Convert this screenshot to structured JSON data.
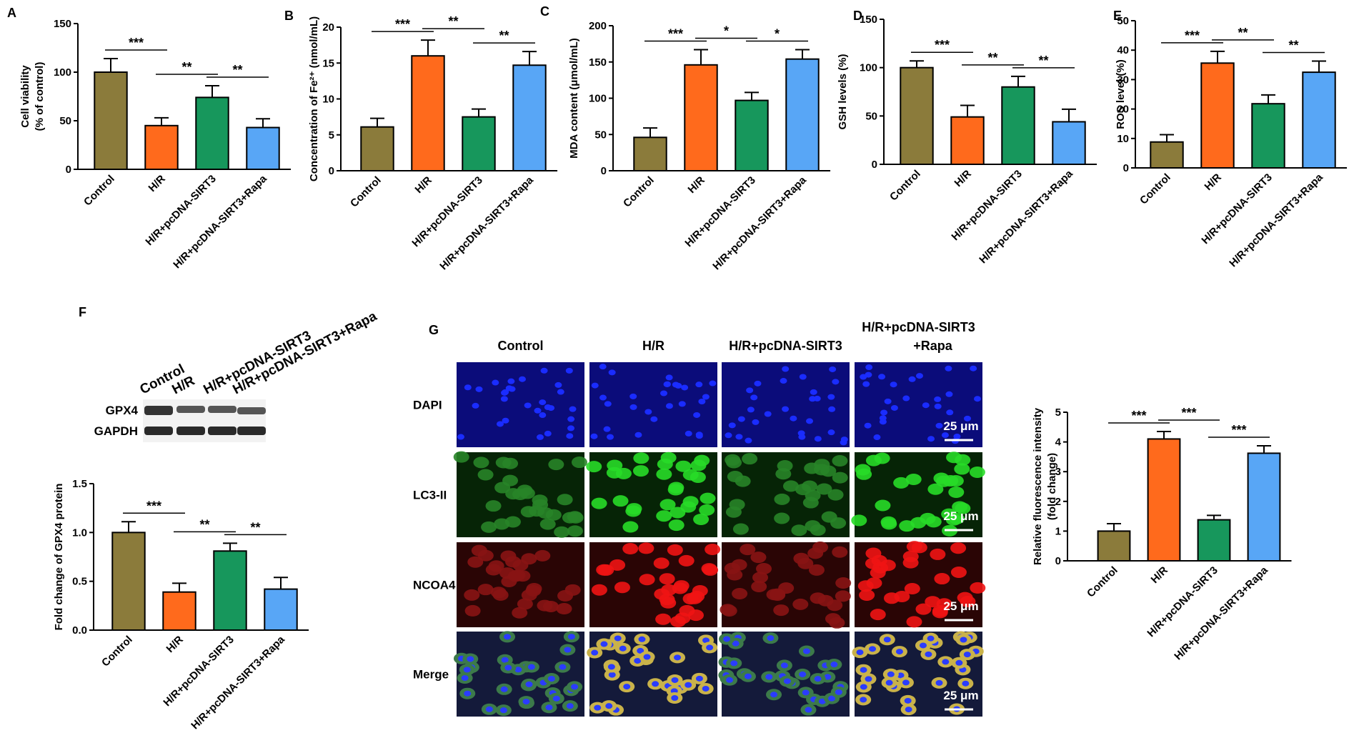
{
  "chart_data": [
    {
      "type": "bar",
      "label": "A",
      "ylabel": [
        "Cell viability",
        "(% of control)"
      ],
      "categories": [
        "Control",
        "H/R",
        "H/R+pcDNA-SIRT3",
        "H/R+pcDNA-SIRT3+Rapa"
      ],
      "values": [
        100,
        45,
        74,
        43
      ],
      "errors": [
        14,
        8,
        12,
        9
      ],
      "colors": [
        "#8b7b3b",
        "#ff6a1c",
        "#17975c",
        "#58a6f6"
      ],
      "ylim": [
        0,
        150
      ],
      "yticks": [
        0,
        50,
        100,
        150
      ],
      "significance": [
        "***",
        "**",
        "**"
      ]
    },
    {
      "type": "bar",
      "label": "B",
      "ylabel": "Concentration of Fe²⁺ (nmol/mL)",
      "categories": [
        "Control",
        "H/R",
        "H/R+pcDNA-SIRT3",
        "H/R+pcDNA-SIRT3+Rapa"
      ],
      "values": [
        6.1,
        16,
        7.5,
        14.7
      ],
      "errors": [
        1.2,
        2.2,
        1.1,
        1.9
      ],
      "colors": [
        "#8b7b3b",
        "#ff6a1c",
        "#17975c",
        "#58a6f6"
      ],
      "ylim": [
        0,
        20
      ],
      "yticks": [
        0,
        5,
        10,
        15,
        20
      ],
      "significance": [
        "***",
        "**",
        "**"
      ]
    },
    {
      "type": "bar",
      "label": "C",
      "ylabel": "MDA content (μmol/mL)",
      "categories": [
        "Control",
        "H/R",
        "H/R+pcDNA-SIRT3",
        "H/R+pcDNA-SIRT3+Rapa"
      ],
      "values": [
        46,
        146,
        97,
        154
      ],
      "errors": [
        13,
        21,
        11,
        13
      ],
      "colors": [
        "#8b7b3b",
        "#ff6a1c",
        "#17975c",
        "#58a6f6"
      ],
      "ylim": [
        0,
        200
      ],
      "yticks": [
        0,
        50,
        100,
        150,
        200
      ],
      "significance": [
        "***",
        "*",
        "*"
      ]
    },
    {
      "type": "bar",
      "label": "D",
      "ylabel": "GSH levels (%)",
      "categories": [
        "Control",
        "H/R",
        "H/R+pcDNA-SIRT3",
        "H/R+pcDNA-SIRT3+Rapa"
      ],
      "values": [
        100,
        49,
        80,
        44
      ],
      "errors": [
        7,
        12,
        11,
        13
      ],
      "colors": [
        "#8b7b3b",
        "#ff6a1c",
        "#17975c",
        "#58a6f6"
      ],
      "ylim": [
        0,
        150
      ],
      "yticks": [
        0,
        50,
        100,
        150
      ],
      "significance": [
        "***",
        "**",
        "**"
      ]
    },
    {
      "type": "bar",
      "label": "E",
      "ylabel": "ROS level (%)",
      "categories": [
        "Control",
        "H/R",
        "H/R+pcDNA-SIRT3",
        "H/R+pcDNA-SIRT3+Rapa"
      ],
      "values": [
        8.8,
        35.6,
        21.8,
        32.5
      ],
      "errors": [
        2.5,
        4,
        3,
        3.8
      ],
      "colors": [
        "#8b7b3b",
        "#ff6a1c",
        "#17975c",
        "#58a6f6"
      ],
      "ylim": [
        0,
        50
      ],
      "yticks": [
        0,
        10,
        20,
        30,
        40,
        50
      ],
      "significance": [
        "***",
        "**",
        "**"
      ]
    },
    {
      "type": "bar",
      "label": "F",
      "ylabel": "Fold change of GPX4 protein",
      "categories": [
        "Control",
        "H/R",
        "H/R+pcDNA-SIRT3",
        "H/R+pcDNA-SIRT3+Rapa"
      ],
      "values": [
        1.0,
        0.39,
        0.81,
        0.42
      ],
      "errors": [
        0.11,
        0.09,
        0.08,
        0.12
      ],
      "colors": [
        "#8b7b3b",
        "#ff6a1c",
        "#17975c",
        "#58a6f6"
      ],
      "ylim": [
        0,
        1.5
      ],
      "yticks": [
        {
          "value": 0,
          "label": "0.0"
        },
        {
          "value": 0.5,
          "label": "0.5"
        },
        {
          "value": 1,
          "label": "1.0"
        },
        {
          "value": 1.5,
          "label": "1.5"
        }
      ],
      "significance": [
        "***",
        "**",
        "**"
      ]
    },
    {
      "type": "bar",
      "ylabel": [
        "Relative fluorescence intensity",
        "(fold change)"
      ],
      "categories": [
        "Control",
        "H/R",
        "H/R+pcDNA-SIRT3",
        "H/R+pcDNA-SIRT3+Rapa"
      ],
      "values": [
        1.0,
        4.1,
        1.38,
        3.62
      ],
      "errors": [
        0.25,
        0.25,
        0.15,
        0.25
      ],
      "colors": [
        "#8b7b3b",
        "#ff6a1c",
        "#17975c",
        "#58a6f6"
      ],
      "ylim": [
        0,
        5
      ],
      "yticks": [
        0,
        1,
        2,
        3,
        4,
        5
      ],
      "significance": [
        "***",
        "***",
        "***"
      ]
    }
  ],
  "blot": {
    "lanes": [
      "Control",
      "H/R",
      "H/R+pcDNA-SIRT3",
      "H/R+pcDNA-SIRT3+Rapa"
    ],
    "rows": [
      "GPX4",
      "GAPDH"
    ]
  },
  "microscopy": {
    "label": "G",
    "columns": [
      [
        "Control"
      ],
      [
        "H/R"
      ],
      [
        "H/R+pcDNA-SIRT3"
      ],
      [
        "H/R+pcDNA-SIRT3",
        "+Rapa"
      ]
    ],
    "rows": [
      "DAPI",
      "LC3-II",
      "NCOA4",
      "Merge"
    ],
    "scale_bar": "25 μm"
  }
}
